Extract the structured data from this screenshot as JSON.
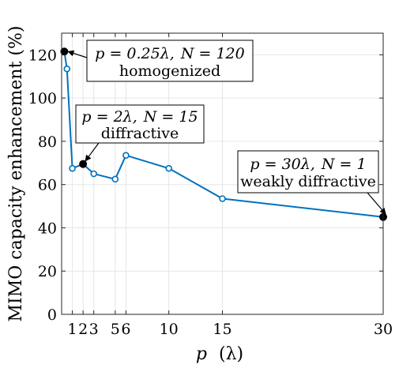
{
  "chart_data": {
    "type": "line",
    "xlabel_var": "p",
    "xlabel_unit": "(λ)",
    "ylabel": "MIMO capacity enhancement (%)",
    "xlim": [
      0,
      30
    ],
    "ylim": [
      0,
      130
    ],
    "xticks": [
      1,
      2,
      3,
      5,
      6,
      10,
      15,
      30
    ],
    "yticks": [
      0,
      20,
      40,
      60,
      80,
      100,
      120
    ],
    "grid": true,
    "line_color": "#0072BD",
    "highlight_color": "#000000",
    "series": [
      {
        "x": [
          0.25,
          0.5,
          1,
          2,
          3,
          5,
          6,
          10,
          15,
          30
        ],
        "y": [
          121.5,
          113.5,
          67.5,
          69.5,
          65,
          62.5,
          73.5,
          67.5,
          53.5,
          45
        ]
      }
    ],
    "highlighted_points": [
      0,
      3,
      9
    ],
    "annotations": [
      {
        "point": 0,
        "line1_p": "p = 0.25λ,",
        "line1_n": "N = 120",
        "line2": "homogenized"
      },
      {
        "point": 3,
        "line1_p": "p = 2λ,",
        "line1_n": "N = 15",
        "line2": "diffractive"
      },
      {
        "point": 9,
        "line1_p": "p = 30λ,",
        "line1_n": "N = 1",
        "line2": "weakly diffractive"
      }
    ]
  }
}
